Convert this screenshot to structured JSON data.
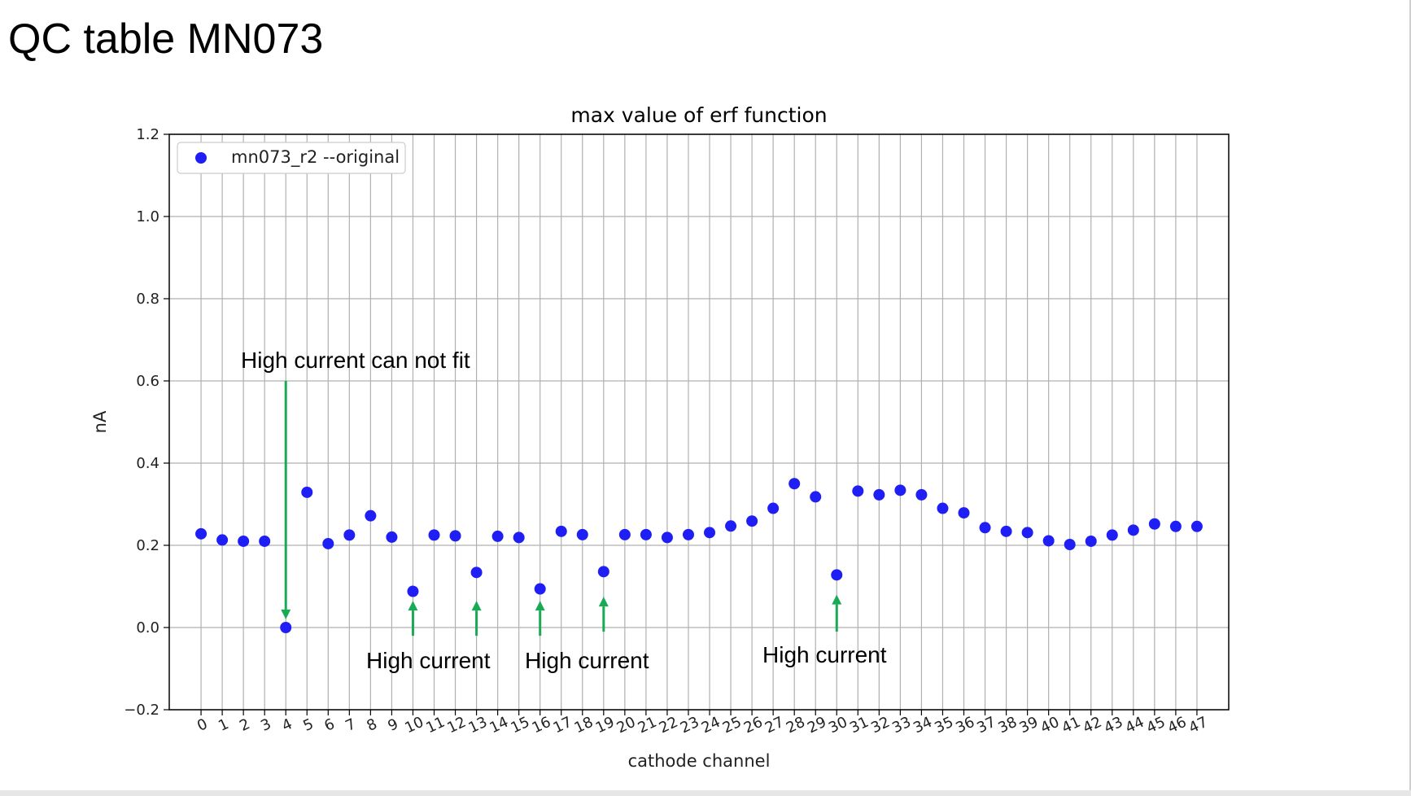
{
  "slide": {
    "title": "QC table MN073"
  },
  "colors": {
    "marker": "#1f1ff5",
    "annotation_arrow": "#1aaa55",
    "grid": "#b0b0b0"
  },
  "chart_data": {
    "type": "scatter",
    "title": "max value of erf function",
    "xlabel": "cathode channel",
    "ylabel": "nA",
    "xlim": [
      -1.5,
      48.5
    ],
    "ylim": [
      -0.2,
      1.2
    ],
    "y_ticks": [
      -0.2,
      0.0,
      0.2,
      0.4,
      0.6,
      0.8,
      1.0,
      1.2
    ],
    "y_tick_labels": [
      "−0.2",
      "0.0",
      "0.2",
      "0.4",
      "0.6",
      "0.8",
      "1.0",
      "1.2"
    ],
    "x_ticks": [
      0,
      1,
      2,
      3,
      4,
      5,
      6,
      7,
      8,
      9,
      10,
      11,
      12,
      13,
      14,
      15,
      16,
      17,
      18,
      19,
      20,
      21,
      22,
      23,
      24,
      25,
      26,
      27,
      28,
      29,
      30,
      31,
      32,
      33,
      34,
      35,
      36,
      37,
      38,
      39,
      40,
      41,
      42,
      43,
      44,
      45,
      46,
      47
    ],
    "x_tick_labels": [
      "0",
      "1",
      "2",
      "3",
      "4",
      "5",
      "6",
      "7",
      "8",
      "9",
      "10",
      "11",
      "12",
      "13",
      "14",
      "15",
      "16",
      "17",
      "18",
      "19",
      "20",
      "21",
      "22",
      "23",
      "24",
      "25",
      "26",
      "27",
      "28",
      "29",
      "30",
      "31",
      "32",
      "33",
      "34",
      "35",
      "36",
      "37",
      "38",
      "39",
      "40",
      "41",
      "42",
      "43",
      "44",
      "45",
      "46",
      "47"
    ],
    "grid": true,
    "legend_position": "top-left",
    "series": [
      {
        "name": "mn073_r2 --original",
        "x": [
          0,
          1,
          2,
          3,
          4,
          5,
          6,
          7,
          8,
          9,
          10,
          11,
          12,
          13,
          14,
          15,
          16,
          17,
          18,
          19,
          20,
          21,
          22,
          23,
          24,
          25,
          26,
          27,
          28,
          29,
          30,
          31,
          32,
          33,
          34,
          35,
          36,
          37,
          38,
          39,
          40,
          41,
          42,
          43,
          44,
          45,
          46,
          47
        ],
        "y": [
          0.228,
          0.213,
          0.21,
          0.21,
          0.0,
          0.329,
          0.204,
          0.225,
          0.272,
          0.22,
          0.088,
          0.225,
          0.223,
          0.134,
          0.222,
          0.219,
          0.094,
          0.234,
          0.226,
          0.136,
          0.226,
          0.226,
          0.219,
          0.226,
          0.231,
          0.247,
          0.259,
          0.29,
          0.35,
          0.318,
          0.128,
          0.332,
          0.323,
          0.334,
          0.323,
          0.29,
          0.279,
          0.243,
          0.234,
          0.231,
          0.211,
          0.202,
          0.21,
          0.225,
          0.237,
          0.252,
          0.246,
          0.246
        ]
      }
    ],
    "annotations": [
      {
        "text": "High current can not fit",
        "arrow": {
          "direction": "down",
          "x": 4,
          "y_from": 0.6,
          "y_to": 0.02
        }
      },
      {
        "text": "High current",
        "arrows": [
          {
            "x": 10,
            "y_from": -0.02,
            "y_to": 0.065
          },
          {
            "x": 13,
            "y_from": -0.02,
            "y_to": 0.065
          }
        ]
      },
      {
        "text": "High current",
        "arrows": [
          {
            "x": 16,
            "y_from": -0.02,
            "y_to": 0.065
          },
          {
            "x": 19,
            "y_from": -0.01,
            "y_to": 0.075
          }
        ]
      },
      {
        "text": "High current",
        "arrows": [
          {
            "x": 30,
            "y_from": -0.01,
            "y_to": 0.08
          }
        ]
      }
    ]
  }
}
